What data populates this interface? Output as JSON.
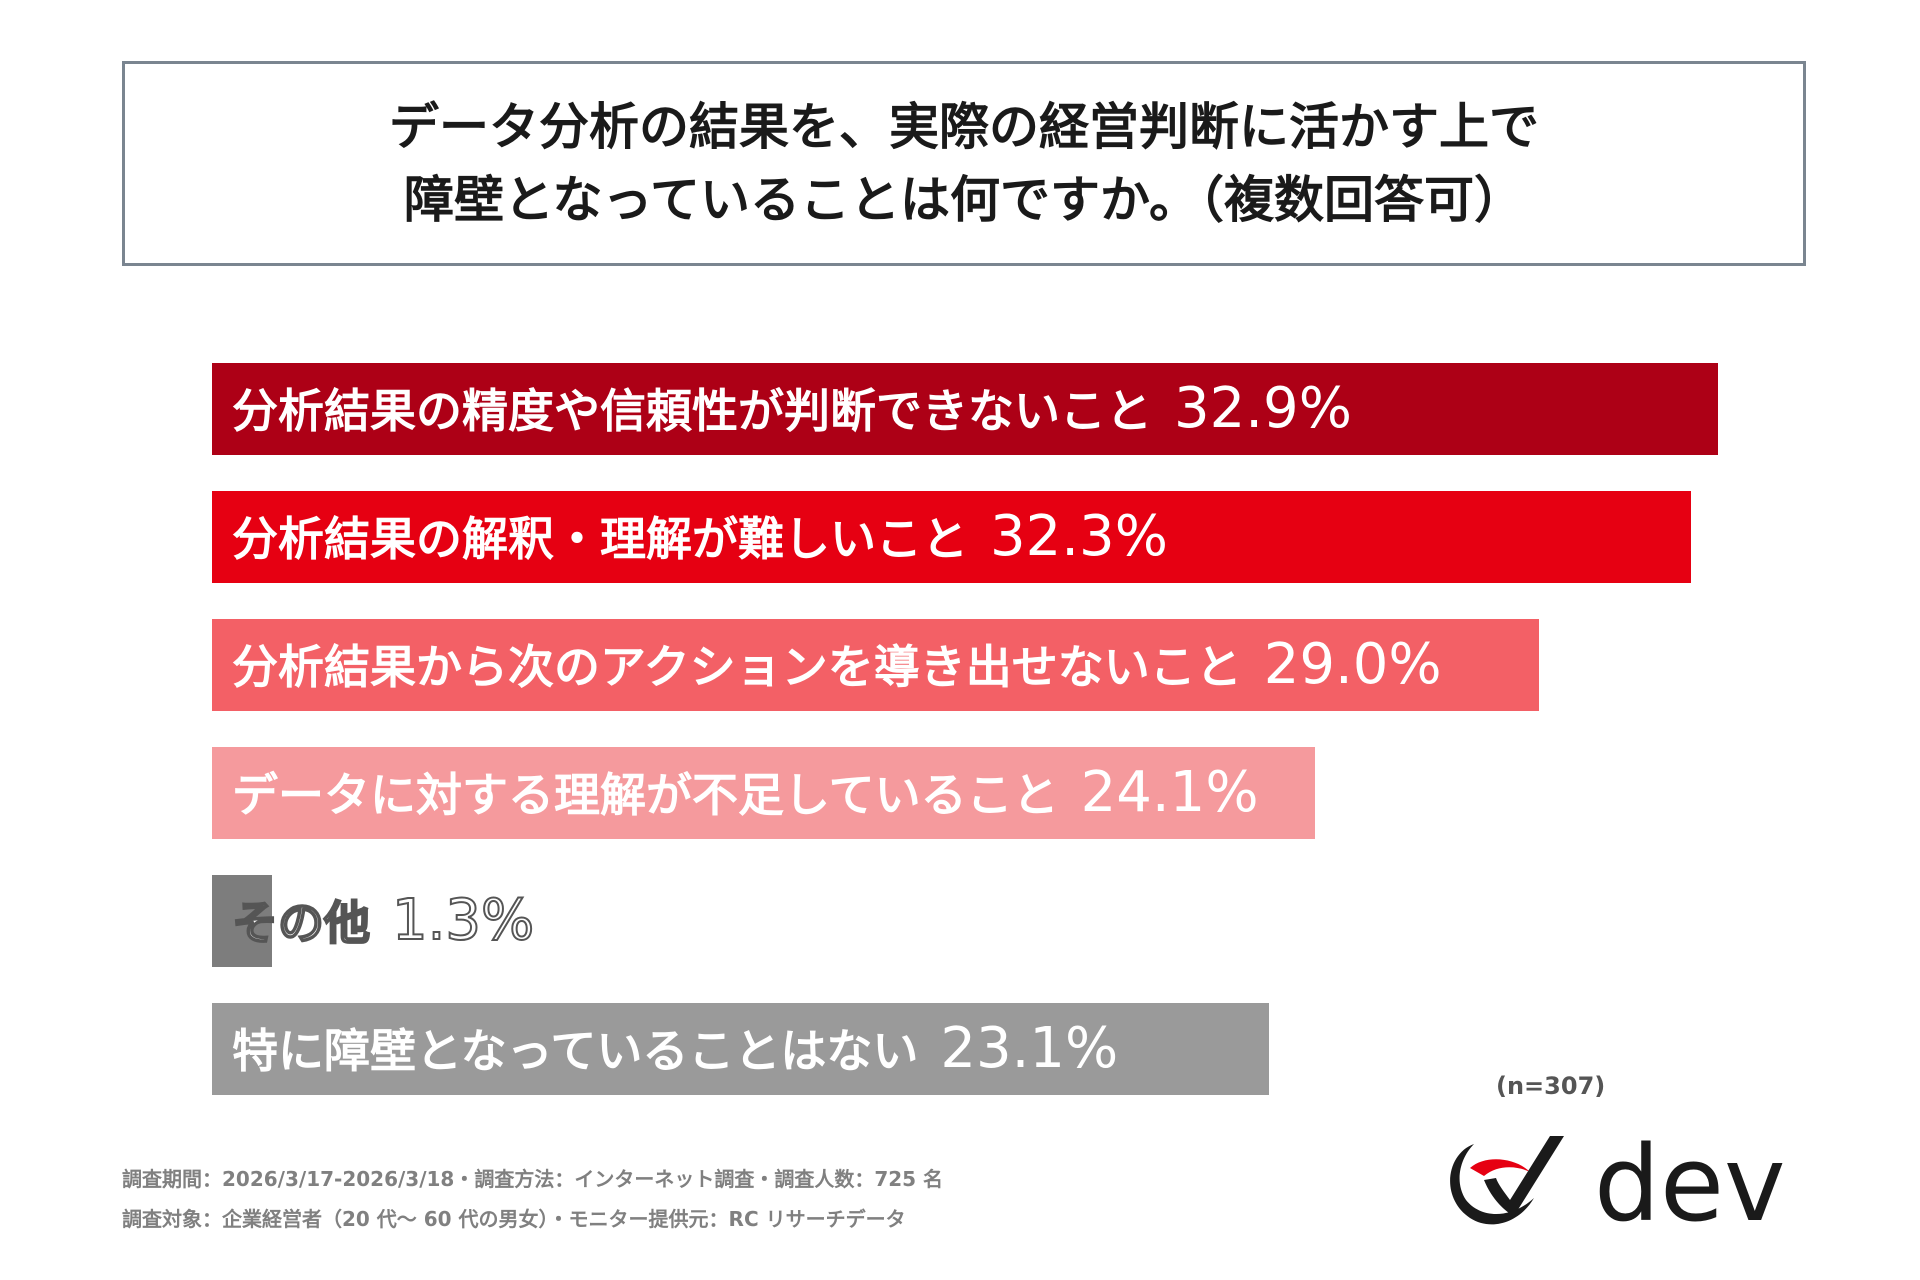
{
  "title_lines": [
    "データ分析の結果を、実際の経営判断に活かす上で",
    "障壁となっていることは何ですか。（複数回答可）"
  ],
  "chart_data": {
    "type": "bar",
    "orientation": "horizontal",
    "unit": "%",
    "categories": [
      "分析結果の精度や信頼性が判断できないこと",
      "分析結果の解釈・理解が難しいこと",
      "分析結果から次のアクションを導き出せないこと",
      "データに対する理解が不足していること",
      "その他",
      "特に障壁となっていることはない"
    ],
    "values": [
      32.9,
      32.3,
      29.0,
      24.1,
      1.3,
      23.1
    ],
    "value_labels": [
      "32.9%",
      "32.3%",
      "29.0%",
      "24.1%",
      "1.3%",
      "23.1%"
    ],
    "colors": [
      "#ad0016",
      "#e60012",
      "#f36066",
      "#f59a9d",
      "#7d7d7d",
      "#9a9a9a"
    ]
  },
  "n_note": "(n=307)",
  "footnotes": [
    "調査期間：2026/3/17-2026/3/18・調査方法：インターネット調査・調査人数：725 名",
    "調査対象：企業経営者（20 代～ 60 代の男女）・モニター提供元：RC リサーチデータ"
  ],
  "logo": {
    "text": "dev",
    "accent": "#e60012"
  }
}
